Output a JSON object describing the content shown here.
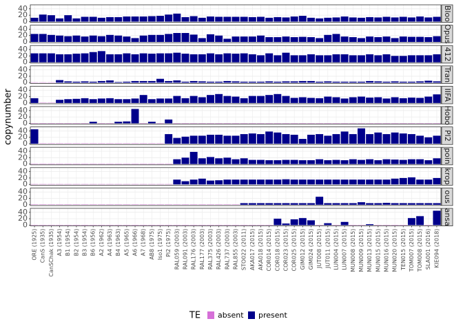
{
  "chart_data": {
    "type": "bar",
    "y_label": "copynumber",
    "legend_title": "TE",
    "legend": [
      {
        "name": "absent",
        "color": "#d670d8"
      },
      {
        "name": "present",
        "color": "#00008b"
      }
    ],
    "legend_position": "bottom",
    "grid": true,
    "ylim": [
      -2.5,
      52.5
    ],
    "yticks": [
      0,
      20,
      40
    ],
    "categories": [
      "ORE (1925)",
      "CanS (1935)",
      "CanSChak (1935)",
      "A3 (1954)",
      "B1 (1954)",
      "B2 (1954)",
      "B3 (1954)",
      "B6 (1956)",
      "A2 (1962)",
      "A4 (1963)",
      "B4 (1963)",
      "A5 (1965)",
      "A6 (1966)",
      "A7 (1968)",
      "AB8 (1975)",
      "Iso1 (1975)",
      "Pi2 (1975)",
      "RAL059 (2003)",
      "RAL091 (2003)",
      "RAL176 (2003)",
      "RAL177 (2003)",
      "RAL375 (2003)",
      "RAL426 (2003)",
      "RAL737 (2003)",
      "RAL855 (2003)",
      "STO022 (2011)",
      "AKA017 (2015)",
      "AKA018 (2015)",
      "COR014 (2015)",
      "COR018 (2015)",
      "COR023 (2015)",
      "COR025 (2015)",
      "GIM012 (2015)",
      "GIM024 (2015)",
      "JUT008 (2015)",
      "JUT011 (2015)",
      "LUN004 (2015)",
      "LUN007 (2015)",
      "MUN008 (2015)",
      "MUN009 (2015)",
      "MUN013 (2015)",
      "MUN015 (2015)",
      "MUN016 (2015)",
      "MUN020 (2015)",
      "TEN015 (2015)",
      "TOM007 (2015)",
      "TOM008 (2015)",
      "SLA001 (2016)",
      "KIE094 (2018)"
    ],
    "facets": [
      {
        "label": "Bloo",
        "values": [
          12,
          22,
          20,
          10,
          20,
          10,
          15,
          15,
          12,
          14,
          14,
          16,
          16,
          16,
          17,
          18,
          22,
          25,
          14,
          17,
          12,
          16,
          15,
          15,
          15,
          15,
          14,
          15,
          12,
          14,
          13,
          16,
          18,
          12,
          10,
          12,
          13,
          16,
          13,
          12,
          14,
          13,
          15,
          13,
          15,
          13,
          16,
          13,
          15
        ],
        "te": [
          1,
          1,
          1,
          1,
          1,
          1,
          1,
          1,
          1,
          1,
          1,
          1,
          1,
          1,
          1,
          1,
          1,
          1,
          1,
          1,
          1,
          1,
          1,
          1,
          1,
          1,
          1,
          1,
          1,
          1,
          1,
          1,
          1,
          1,
          1,
          1,
          1,
          1,
          1,
          1,
          1,
          1,
          1,
          1,
          1,
          1,
          1,
          1,
          1
        ]
      },
      {
        "label": "Opus",
        "values": [
          25,
          25,
          22,
          20,
          18,
          20,
          17,
          20,
          18,
          22,
          20,
          17,
          12,
          20,
          22,
          22,
          25,
          28,
          28,
          23,
          12,
          24,
          20,
          10,
          17,
          17,
          17,
          20,
          15,
          15,
          17,
          15,
          16,
          15,
          12,
          22,
          25,
          17,
          15,
          12,
          17,
          15,
          17,
          12,
          17,
          16,
          16,
          15,
          18
        ],
        "te": [
          1,
          1,
          1,
          1,
          1,
          1,
          1,
          1,
          1,
          1,
          1,
          1,
          1,
          1,
          1,
          1,
          1,
          1,
          1,
          1,
          1,
          1,
          1,
          1,
          1,
          1,
          1,
          1,
          1,
          1,
          1,
          1,
          1,
          1,
          1,
          1,
          1,
          1,
          1,
          1,
          1,
          1,
          1,
          1,
          1,
          1,
          1,
          1,
          1
        ]
      },
      {
        "label": "412",
        "values": [
          28,
          28,
          28,
          25,
          25,
          27,
          28,
          32,
          35,
          25,
          25,
          28,
          25,
          28,
          27,
          28,
          28,
          30,
          27,
          25,
          25,
          28,
          25,
          28,
          27,
          28,
          25,
          22,
          28,
          22,
          30,
          22,
          22,
          25,
          22,
          22,
          25,
          25,
          22,
          22,
          25,
          22,
          25,
          20,
          20,
          22,
          22,
          22,
          25
        ],
        "te": [
          1,
          1,
          1,
          1,
          1,
          1,
          1,
          1,
          1,
          1,
          1,
          1,
          1,
          1,
          1,
          1,
          1,
          1,
          1,
          1,
          1,
          1,
          1,
          1,
          1,
          1,
          1,
          1,
          1,
          1,
          1,
          1,
          1,
          1,
          1,
          1,
          1,
          1,
          1,
          1,
          1,
          1,
          1,
          1,
          1,
          1,
          1,
          1,
          1
        ]
      },
      {
        "label": "Tran",
        "values": [
          1,
          1,
          1,
          8,
          4,
          3,
          4,
          3,
          5,
          7,
          2,
          3,
          5,
          5,
          5,
          12,
          5,
          7,
          3,
          5,
          4,
          3,
          3,
          5,
          4,
          3,
          3,
          3,
          4,
          3,
          4,
          4,
          5,
          5,
          3,
          4,
          3,
          3,
          3,
          3,
          5,
          4,
          3,
          4,
          3,
          3,
          4,
          6,
          4
        ],
        "te": [
          0,
          0,
          0,
          1,
          1,
          1,
          1,
          1,
          1,
          1,
          1,
          1,
          1,
          1,
          1,
          1,
          1,
          1,
          1,
          1,
          1,
          1,
          1,
          1,
          1,
          1,
          1,
          1,
          1,
          1,
          1,
          1,
          1,
          1,
          1,
          1,
          1,
          1,
          1,
          1,
          1,
          1,
          1,
          1,
          1,
          1,
          1,
          1,
          1
        ]
      },
      {
        "label": "IIFA",
        "values": [
          15,
          1,
          1,
          10,
          12,
          13,
          15,
          12,
          14,
          15,
          12,
          12,
          14,
          25,
          12,
          14,
          14,
          22,
          15,
          22,
          18,
          25,
          28,
          22,
          20,
          15,
          22,
          22,
          25,
          28,
          22,
          16,
          18,
          16,
          15,
          20,
          18,
          14,
          18,
          20,
          17,
          18,
          14,
          18,
          15,
          17,
          16,
          20,
          27
        ],
        "te": [
          1,
          0,
          0,
          1,
          1,
          1,
          1,
          1,
          1,
          1,
          1,
          1,
          1,
          1,
          1,
          1,
          1,
          1,
          1,
          1,
          1,
          1,
          1,
          1,
          1,
          1,
          1,
          1,
          1,
          1,
          1,
          1,
          1,
          1,
          1,
          1,
          1,
          1,
          1,
          1,
          1,
          1,
          1,
          1,
          1,
          1,
          1,
          1,
          1
        ]
      },
      {
        "label": "Hobo",
        "values": [
          1,
          1,
          1,
          1,
          1,
          1,
          1,
          5,
          1,
          1,
          5,
          6,
          45,
          1,
          5,
          1,
          12,
          1,
          1,
          1,
          1,
          1,
          1,
          1,
          1,
          1,
          1,
          1,
          1,
          1,
          1,
          1,
          1,
          1,
          1,
          1,
          1,
          1,
          1,
          1,
          1,
          1,
          1,
          1,
          1,
          1,
          1,
          1,
          1
        ],
        "te": [
          0,
          0,
          0,
          0,
          0,
          0,
          0,
          1,
          0,
          0,
          1,
          1,
          1,
          0,
          1,
          0,
          1,
          0,
          0,
          0,
          0,
          0,
          0,
          0,
          0,
          0,
          0,
          0,
          0,
          0,
          0,
          0,
          0,
          0,
          0,
          0,
          0,
          0,
          0,
          0,
          0,
          0,
          0,
          0,
          0,
          0,
          0,
          0,
          0
        ]
      },
      {
        "label": "Pl2",
        "values": [
          45,
          1,
          1,
          1,
          1,
          1,
          1,
          1,
          1,
          1,
          1,
          1,
          1,
          1,
          1,
          1,
          30,
          18,
          22,
          25,
          25,
          28,
          28,
          25,
          25,
          30,
          32,
          30,
          38,
          35,
          30,
          28,
          15,
          28,
          30,
          25,
          30,
          38,
          30,
          48,
          30,
          35,
          30,
          35,
          32,
          30,
          25,
          20,
          25
        ],
        "te": [
          1,
          0,
          0,
          0,
          0,
          0,
          0,
          0,
          0,
          0,
          0,
          0,
          0,
          0,
          0,
          0,
          1,
          1,
          1,
          1,
          1,
          1,
          1,
          1,
          1,
          1,
          1,
          1,
          1,
          1,
          1,
          1,
          1,
          1,
          1,
          1,
          1,
          1,
          1,
          1,
          1,
          1,
          1,
          1,
          1,
          1,
          1,
          1,
          1
        ]
      },
      {
        "label": "poin",
        "values": [
          1,
          1,
          1,
          1,
          1,
          1,
          1,
          1,
          1,
          1,
          1,
          1,
          1,
          1,
          1,
          1,
          1,
          15,
          20,
          38,
          18,
          22,
          18,
          20,
          15,
          18,
          13,
          13,
          12,
          12,
          13,
          13,
          12,
          12,
          15,
          12,
          13,
          12,
          15,
          13,
          15,
          12,
          15,
          14,
          13,
          15,
          15,
          12,
          18
        ],
        "te": [
          0,
          0,
          0,
          0,
          0,
          0,
          0,
          0,
          0,
          0,
          0,
          0,
          0,
          0,
          0,
          0,
          0,
          1,
          1,
          1,
          1,
          1,
          1,
          1,
          1,
          1,
          1,
          1,
          1,
          1,
          1,
          1,
          1,
          1,
          1,
          1,
          1,
          1,
          1,
          1,
          1,
          1,
          1,
          1,
          1,
          1,
          1,
          1,
          1
        ]
      },
      {
        "label": "krop",
        "values": [
          1,
          1,
          1,
          1,
          1,
          1,
          1,
          1,
          1,
          1,
          1,
          1,
          1,
          1,
          1,
          1,
          1,
          15,
          10,
          15,
          18,
          12,
          13,
          15,
          15,
          15,
          15,
          15,
          15,
          15,
          16,
          15,
          15,
          15,
          15,
          15,
          15,
          15,
          15,
          15,
          15,
          15,
          15,
          18,
          20,
          22,
          15,
          15,
          20
        ],
        "te": [
          0,
          0,
          0,
          0,
          0,
          0,
          0,
          0,
          0,
          0,
          0,
          0,
          0,
          0,
          0,
          0,
          0,
          1,
          1,
          1,
          1,
          1,
          1,
          1,
          1,
          1,
          1,
          1,
          1,
          1,
          1,
          1,
          1,
          1,
          1,
          1,
          1,
          1,
          1,
          1,
          1,
          1,
          1,
          1,
          1,
          1,
          1,
          1,
          1
        ]
      },
      {
        "label": "ous",
        "values": [
          1,
          1,
          1,
          1,
          1,
          1,
          1,
          1,
          1,
          1,
          1,
          1,
          1,
          1,
          1,
          1,
          1,
          1,
          1,
          1,
          1,
          1,
          1,
          1,
          1,
          5,
          5,
          5,
          5,
          5,
          5,
          5,
          5,
          5,
          25,
          5,
          5,
          5,
          5,
          8,
          5,
          5,
          6,
          5,
          5,
          5,
          5,
          5,
          5
        ],
        "te": [
          0,
          0,
          0,
          0,
          0,
          0,
          0,
          0,
          0,
          0,
          0,
          0,
          0,
          0,
          0,
          0,
          0,
          0,
          0,
          0,
          0,
          0,
          0,
          0,
          0,
          1,
          1,
          1,
          1,
          1,
          1,
          1,
          1,
          1,
          1,
          1,
          1,
          1,
          1,
          1,
          1,
          1,
          1,
          1,
          1,
          1,
          1,
          1,
          1
        ]
      },
      {
        "label": "ansa",
        "values": [
          1,
          1,
          1,
          1,
          1,
          1,
          1,
          1,
          1,
          1,
          1,
          1,
          1,
          1,
          1,
          1,
          1,
          1,
          1,
          1,
          1,
          1,
          1,
          1,
          1,
          1,
          1,
          1,
          1,
          20,
          5,
          18,
          22,
          15,
          1,
          6,
          1,
          10,
          1,
          1,
          3,
          1,
          1,
          1,
          1,
          22,
          28,
          1,
          45
        ],
        "te": [
          0,
          0,
          0,
          0,
          0,
          0,
          0,
          0,
          0,
          0,
          0,
          0,
          0,
          0,
          0,
          0,
          0,
          0,
          0,
          0,
          0,
          0,
          0,
          0,
          0,
          0,
          0,
          0,
          0,
          1,
          1,
          1,
          1,
          1,
          0,
          1,
          0,
          1,
          0,
          0,
          1,
          0,
          0,
          0,
          0,
          1,
          1,
          0,
          1
        ]
      }
    ]
  }
}
